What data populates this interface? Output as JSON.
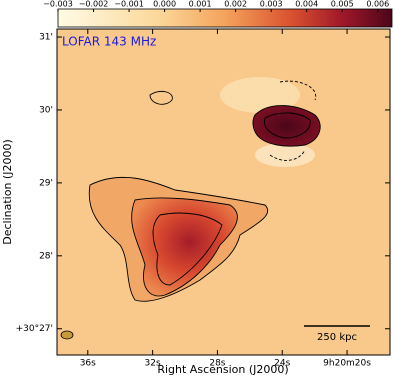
{
  "chart_data": {
    "type": "image",
    "annotation": "LOFAR 143 MHz",
    "scale_bar": "250 kpc",
    "xlabel": "Right Ascension (J2000)",
    "ylabel": "Declination (J2000)",
    "xlim": [
      37.9,
      17.35
    ],
    "xticks": [
      {
        "value": 36,
        "label": "36s"
      },
      {
        "value": 32,
        "label": "32s"
      },
      {
        "value": 28,
        "label": "28s"
      },
      {
        "value": 24,
        "label": "24s"
      },
      {
        "value": 20,
        "label": "9h20m20s"
      }
    ],
    "ylim": [
      26.64,
      31.11
    ],
    "yticks": [
      {
        "value": 31,
        "label": "31'"
      },
      {
        "value": 30,
        "label": "30'"
      },
      {
        "value": 29,
        "label": "29'"
      },
      {
        "value": 28,
        "label": "28'"
      },
      {
        "value": 27,
        "label": "+30°27'"
      }
    ],
    "clim": [
      -0.003,
      0.0064
    ],
    "cticks": [
      {
        "value": -0.003,
        "label": "−0.003"
      },
      {
        "value": -0.002,
        "label": "−0.002"
      },
      {
        "value": -0.001,
        "label": "−0.001"
      },
      {
        "value": 0,
        "label": "0.000"
      },
      0.001,
      0.002,
      0.003,
      0.004,
      0.005,
      0.006
    ]
  }
}
